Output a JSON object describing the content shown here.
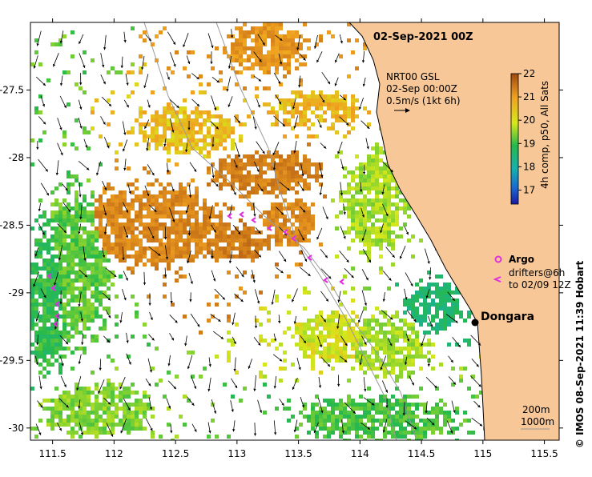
{
  "map": {
    "title": "02-Sep-2021 00Z",
    "info_lines": [
      "NRT00 GSL",
      "02-Sep 00:00Z",
      "0.5m/s (1kt 6h)"
    ],
    "colorbar": {
      "label": "4h comp, p50, All Sats",
      "ticks": [
        17,
        18,
        19,
        20,
        21,
        22
      ],
      "range": [
        16.4,
        22
      ]
    },
    "legend": {
      "argo": "Argo",
      "drifters_line1": "drifters@6h",
      "drifters_line2": "to 02/09 12Z"
    },
    "place": "Dongara",
    "contours": [
      "200m",
      "1000m"
    ],
    "credit": "© IMOS 08-Sep-2021 11:39 Hobart",
    "lon_ticks": [
      "111.5",
      "112",
      "112.5",
      "113",
      "113.5",
      "114",
      "114.5",
      "115",
      "115.5"
    ],
    "lat_ticks": [
      "-27.5",
      "-28",
      "-28.5",
      "-29",
      "-29.5",
      "-30"
    ],
    "lon_range": [
      111.32,
      115.62
    ],
    "lat_range": [
      -30.09,
      -27.0
    ],
    "colors": {
      "land": "#f7c797",
      "contour": "#9a9a9a",
      "argo": "#dd33dd",
      "arrow": "#000000"
    }
  }
}
